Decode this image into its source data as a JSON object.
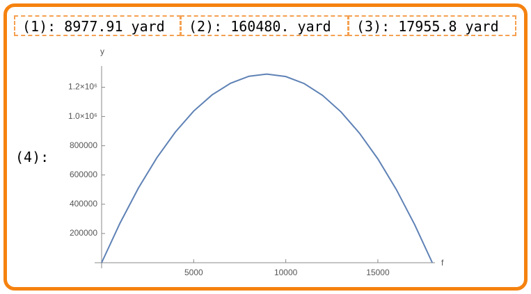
{
  "outputs": [
    {
      "label": "(1):",
      "value": "8977.91 yard"
    },
    {
      "label": "(2):",
      "value": "160480. yard"
    },
    {
      "label": "(3):",
      "value": "17955.8 yard"
    }
  ],
  "plot_label": "(4):",
  "chart_data": {
    "type": "line",
    "x_label": "f",
    "y_label": "y",
    "x": [
      0,
      1000,
      2000,
      3000,
      4000,
      5000,
      6000,
      7000,
      8000,
      8977.91,
      10000,
      11000,
      12000,
      13000,
      14000,
      15000,
      16000,
      17000,
      17955.8
    ],
    "series": [
      {
        "color": "#5e81b5",
        "values": [
          0,
          271000,
          511000,
          718000,
          893000,
          1037000,
          1148000,
          1227000,
          1275000,
          1290000,
          1273000,
          1225000,
          1144000,
          1031000,
          886000,
          710000,
          501000,
          260000,
          0
        ]
      }
    ],
    "xlim": [
      0,
      18100
    ],
    "ylim": [
      0,
      1345000
    ],
    "xticks": [
      5000,
      10000,
      15000
    ],
    "yticks": [
      200000,
      400000,
      600000,
      800000,
      {
        "value": 1000000,
        "label": "1.0×10⁶"
      },
      {
        "value": 1200000,
        "label": "1.2×10⁶"
      }
    ]
  }
}
